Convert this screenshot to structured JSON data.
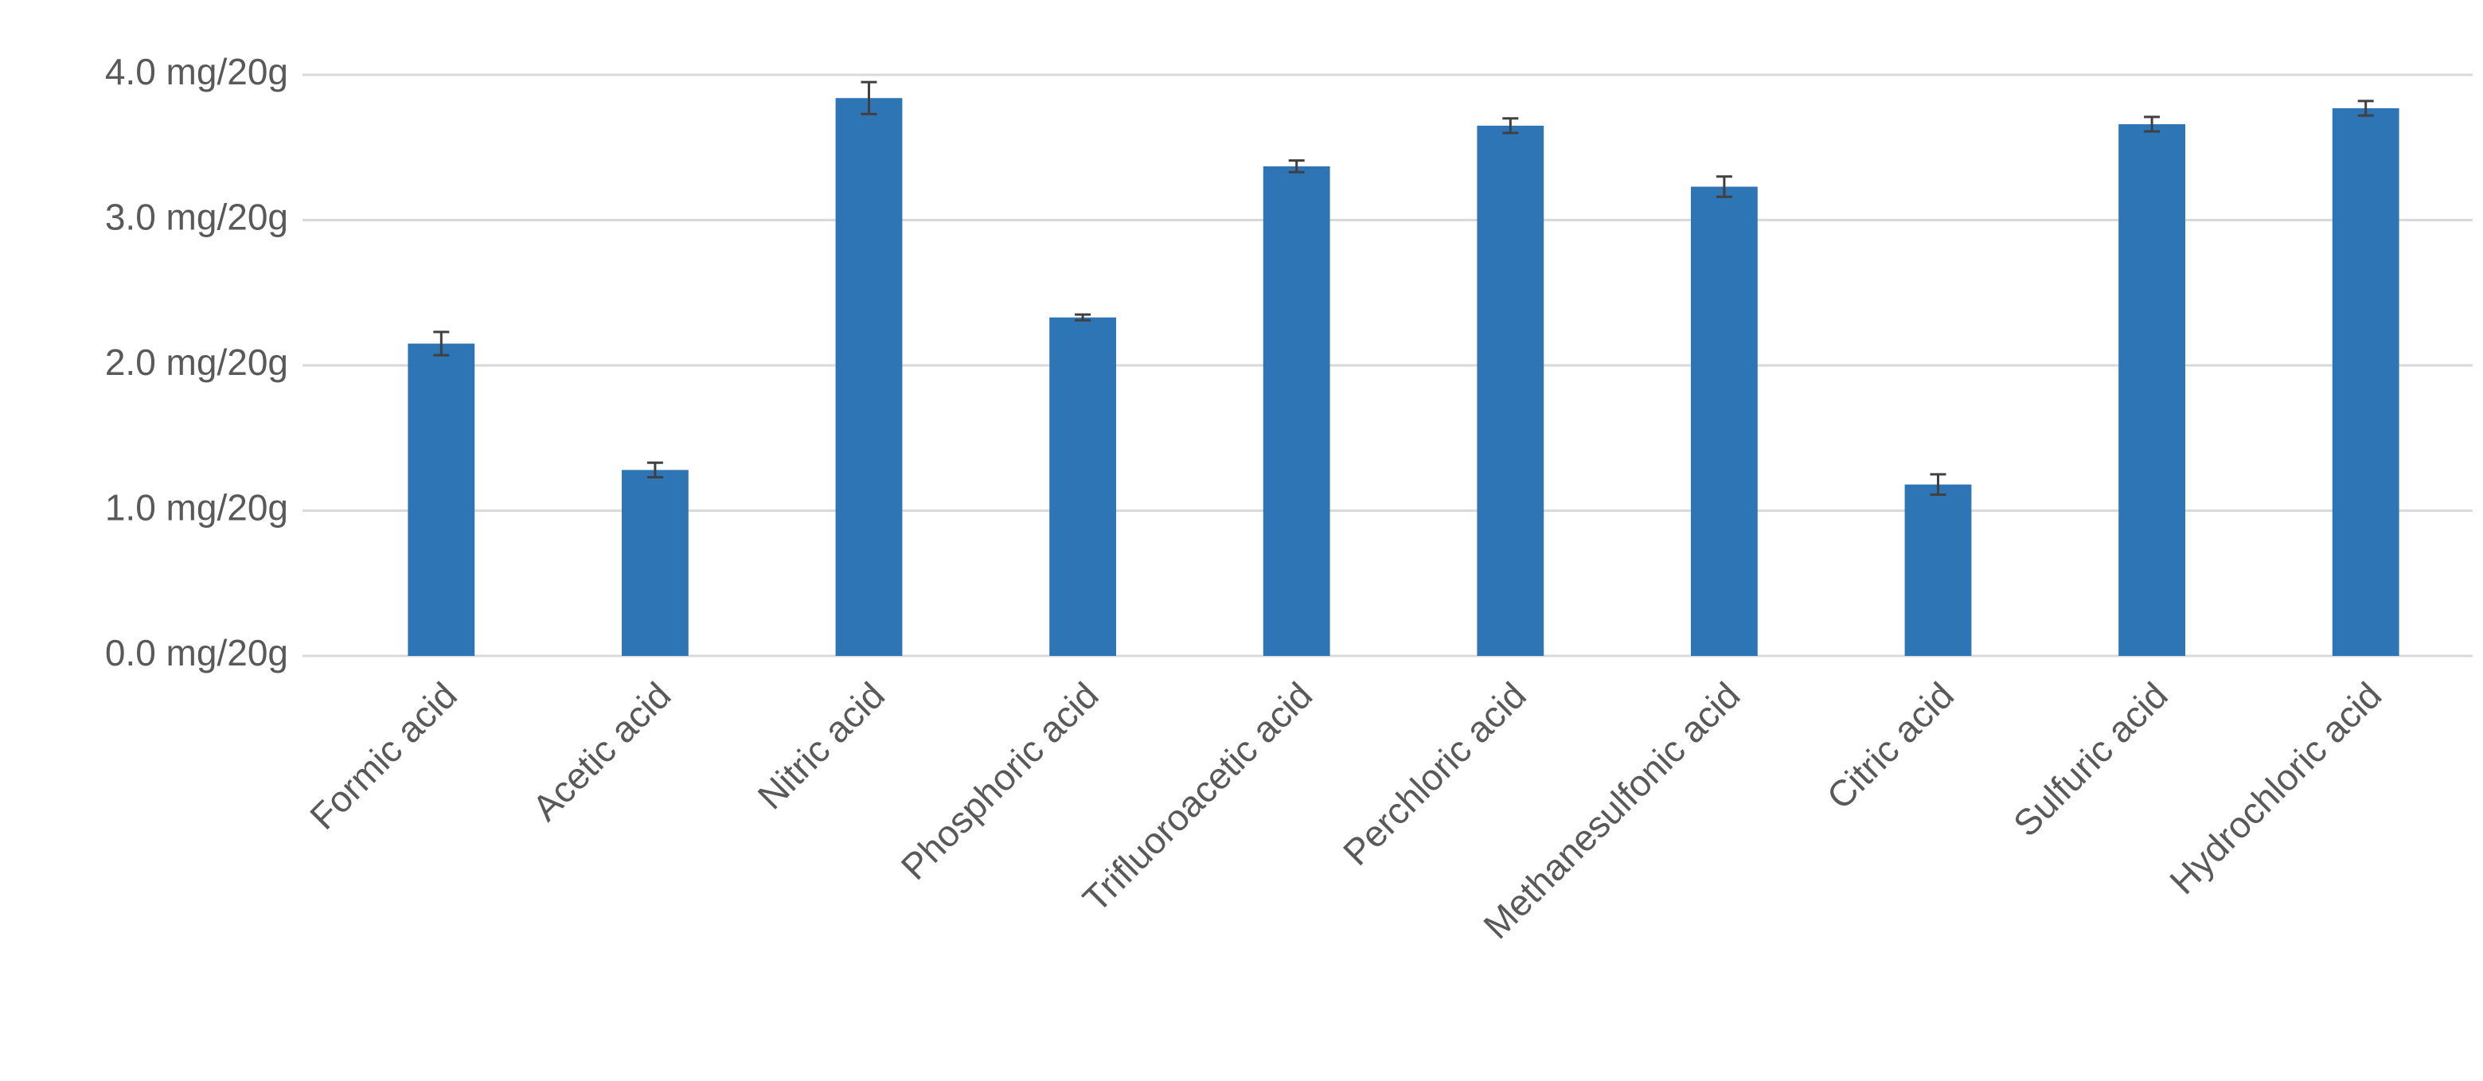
{
  "chart_data": {
    "type": "bar",
    "categories": [
      "Formic acid",
      "Acetic acid",
      "Nitric acid",
      "Phosphoric acid",
      "Trifluoroacetic acid",
      "Perchloric acid",
      "Methanesulfonic acid",
      "Citric acid",
      "Sulfuric acid",
      "Hydrochloric acid"
    ],
    "values": [
      2.15,
      1.28,
      3.84,
      2.33,
      3.37,
      3.65,
      3.23,
      1.18,
      3.66,
      3.77
    ],
    "errors": [
      0.08,
      0.05,
      0.11,
      0.02,
      0.04,
      0.05,
      0.07,
      0.07,
      0.05,
      0.05
    ],
    "color": "#2e75b6",
    "ylim": [
      0,
      4
    ],
    "yticks": [
      {
        "value": 0,
        "label": "0.0 mg/20g"
      },
      {
        "value": 1,
        "label": "1.0 mg/20g"
      },
      {
        "value": 2,
        "label": "2.0 mg/20g"
      },
      {
        "value": 3,
        "label": "3.0 mg/20g"
      },
      {
        "value": 4,
        "label": "4.0 mg/20g"
      }
    ],
    "grid": true
  }
}
